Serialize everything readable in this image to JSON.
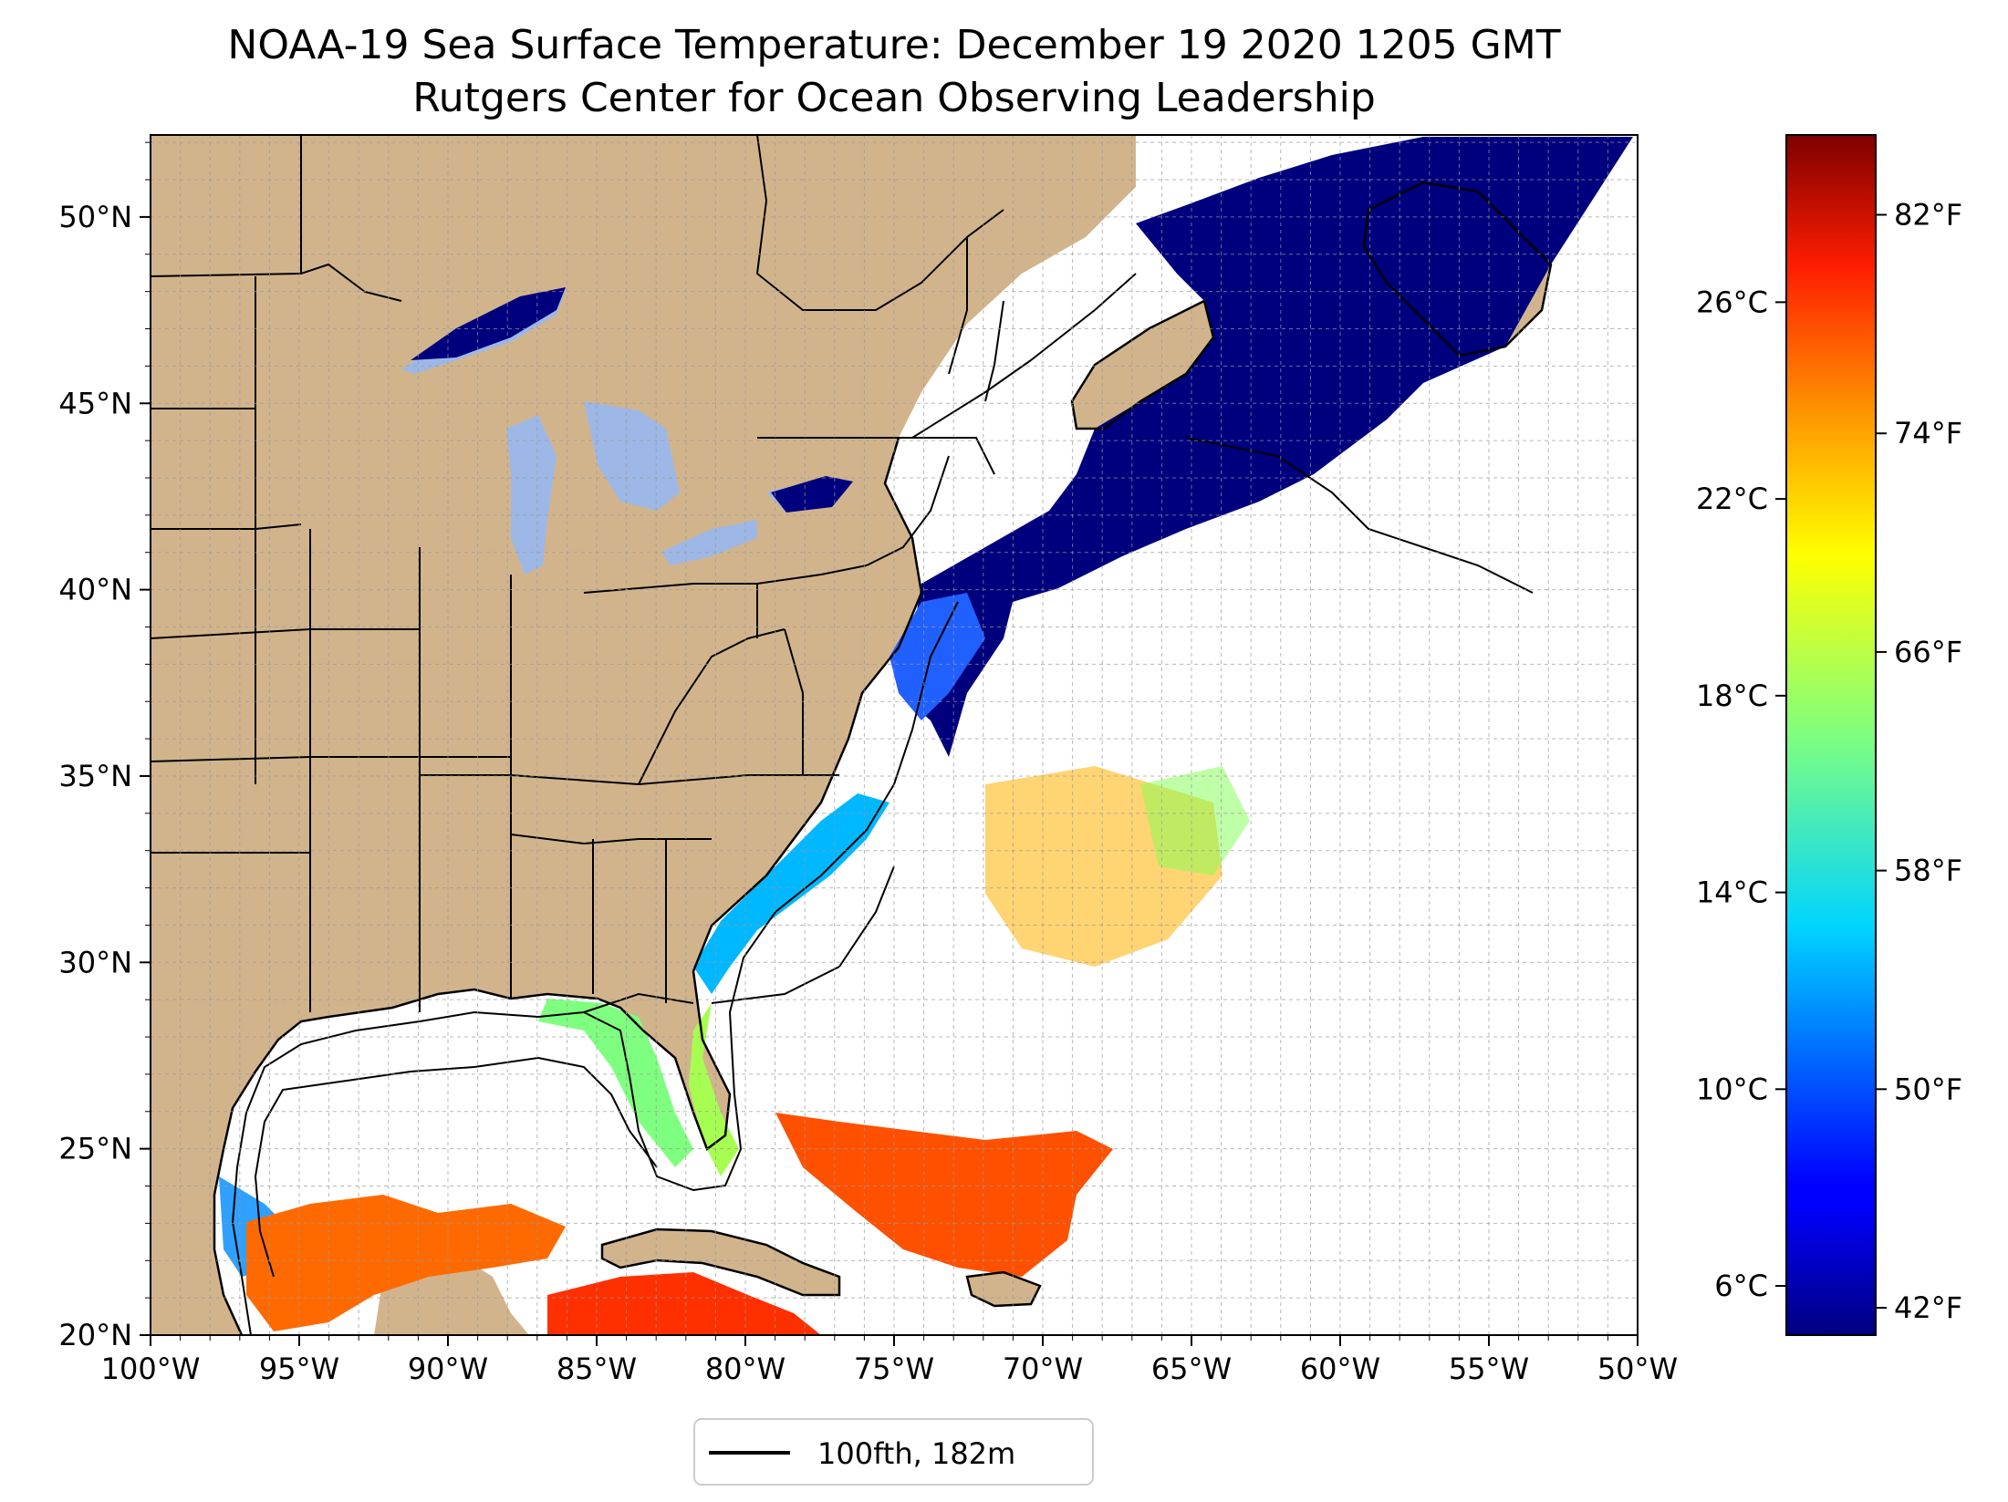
{
  "title": {
    "line1": "NOAA-19 Sea Surface Temperature: December 19 2020 1205 GMT",
    "line2": "Rutgers Center for Ocean Observing Leadership"
  },
  "map": {
    "lon_range": [
      -100,
      -50
    ],
    "lat_range": [
      20,
      52.2
    ],
    "land_color": "#d2b48c",
    "lake_color": "#9db8e6",
    "coastline_color": "#000000",
    "x_ticks": [
      "100°W",
      "95°W",
      "90°W",
      "85°W",
      "80°W",
      "75°W",
      "70°W",
      "65°W",
      "60°W",
      "55°W",
      "50°W"
    ],
    "y_ticks": [
      "20°N",
      "25°N",
      "30°N",
      "35°N",
      "40°N",
      "45°N",
      "50°N"
    ],
    "grid": true
  },
  "colorbar": {
    "colormap": "jet",
    "celsius_range": [
      5,
      29.4
    ],
    "celsius_ticks": [
      "6°C",
      "10°C",
      "14°C",
      "18°C",
      "22°C",
      "26°C"
    ],
    "fahrenheit_ticks": [
      "42°F",
      "50°F",
      "58°F",
      "66°F",
      "74°F",
      "82°F"
    ]
  },
  "legend": {
    "label": "100fth, 182m",
    "line_color": "#000000",
    "placement": "bottom-center"
  }
}
